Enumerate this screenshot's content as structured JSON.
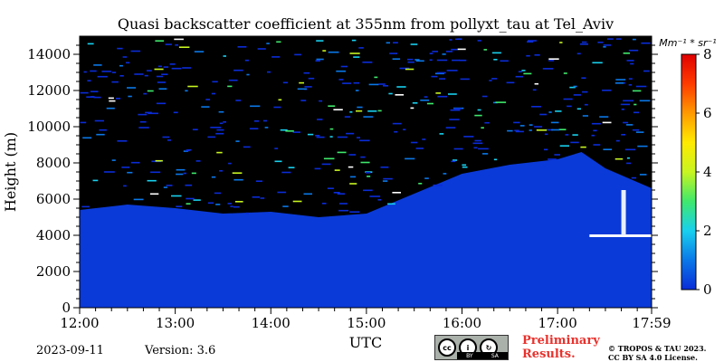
{
  "chart_data": {
    "type": "heatmap",
    "title": "Quasi backscatter coefficient at 355nm from pollyxt_tau at Tel_Aviv",
    "xlabel": "UTC",
    "ylabel": "Height (m)",
    "x_ticks": [
      "12:00",
      "13:00",
      "14:00",
      "15:00",
      "16:00",
      "17:00",
      "17:59"
    ],
    "y_ticks": [
      0,
      2000,
      4000,
      6000,
      8000,
      10000,
      12000,
      14000
    ],
    "ylim": [
      0,
      15000
    ],
    "colorbar": {
      "label": "Mm⁻¹ * sr⁻¹",
      "range": [
        0,
        8
      ],
      "ticks": [
        0,
        2,
        4,
        6,
        8
      ],
      "colormap": [
        "#0a2cd8",
        "#0a78e8",
        "#18d0ee",
        "#3fe86c",
        "#c8f520",
        "#ffea00",
        "#ff9a00",
        "#ff3b00",
        "#e00000"
      ]
    },
    "background_color": "#000000",
    "layer_color": "#0a3ad8",
    "layer_top": [
      {
        "time": "12:00",
        "height_m": 5400
      },
      {
        "time": "12:30",
        "height_m": 5700
      },
      {
        "time": "13:00",
        "height_m": 5500
      },
      {
        "time": "13:30",
        "height_m": 5200
      },
      {
        "time": "14:00",
        "height_m": 5300
      },
      {
        "time": "14:30",
        "height_m": 5000
      },
      {
        "time": "15:00",
        "height_m": 5200
      },
      {
        "time": "15:30",
        "height_m": 6300
      },
      {
        "time": "16:00",
        "height_m": 7400
      },
      {
        "time": "16:30",
        "height_m": 7900
      },
      {
        "time": "17:00",
        "height_m": 8200
      },
      {
        "time": "17:15",
        "height_m": 8600
      },
      {
        "time": "17:30",
        "height_m": 7700
      },
      {
        "time": "17:59",
        "height_m": 6600
      }
    ],
    "cloud_top_m": 4000
  },
  "footer": {
    "date": "2023-09-11",
    "version": "Version: 3.6",
    "preliminary_line1": "Preliminary",
    "preliminary_line2": "Results.",
    "copyright_line1": "© TROPOS & TAU 2023.",
    "copyright_line2": "CC BY SA 4.0 License.",
    "license_by": "BY",
    "license_sa": "SA"
  }
}
